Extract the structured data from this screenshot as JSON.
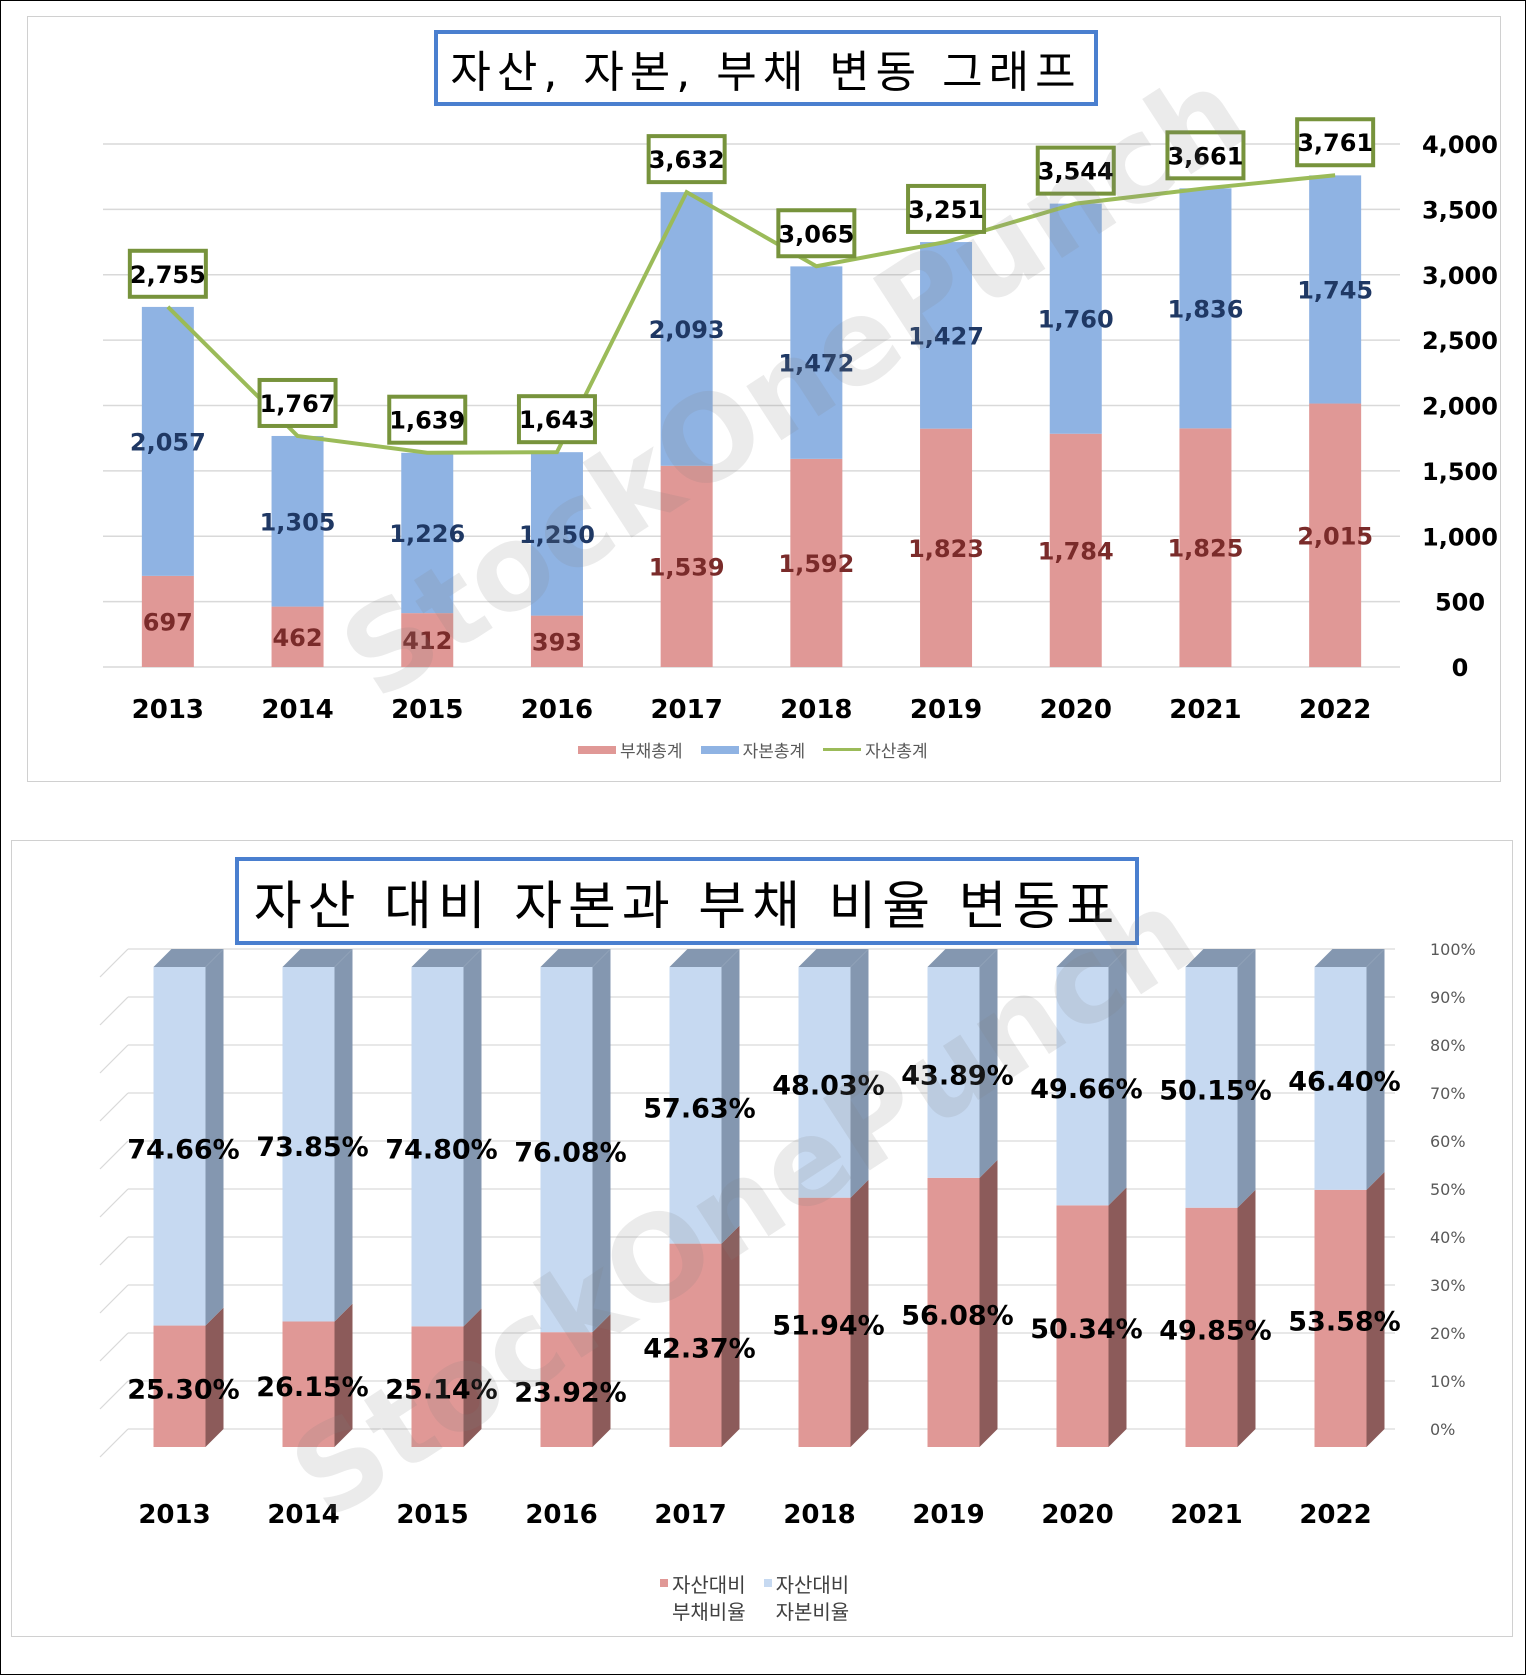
{
  "watermark": "StockOnePunch",
  "chart_data": [
    {
      "type": "bar",
      "stacked": true,
      "title": "자산, 자본, 부채 변동 그래프",
      "categories": [
        "2013",
        "2014",
        "2015",
        "2016",
        "2017",
        "2018",
        "2019",
        "2020",
        "2021",
        "2022"
      ],
      "series": [
        {
          "name": "부채총계",
          "kind": "bar",
          "color": "#e09896",
          "label_color": "#7a2b2a",
          "values": [
            697,
            462,
            412,
            393,
            1539,
            1592,
            1823,
            1784,
            1825,
            2015
          ]
        },
        {
          "name": "자본총계",
          "kind": "bar",
          "color": "#8fb3e3",
          "label_color": "#1f3864",
          "values": [
            2057,
            1305,
            1226,
            1250,
            2093,
            1472,
            1427,
            1760,
            1836,
            1745
          ]
        },
        {
          "name": "자산총계",
          "kind": "line",
          "color": "#9bbb59",
          "values": [
            2755,
            1767,
            1639,
            1643,
            3632,
            3065,
            3251,
            3544,
            3661,
            3761
          ]
        }
      ],
      "value_labels": {
        "debt": [
          "697",
          "462",
          "412",
          "393",
          "1,539",
          "1,592",
          "1,823",
          "1,784",
          "1,825",
          "2,015"
        ],
        "equity": [
          "2,057",
          "1,305",
          "1,226",
          "1,250",
          "2,093",
          "1,472",
          "1,427",
          "1,760",
          "1,836",
          "1,745"
        ],
        "assets": [
          "2,755",
          "1,767",
          "1,639",
          "1,643",
          "3,632",
          "3,065",
          "3,251",
          "3,544",
          "3,661",
          "3,761"
        ]
      },
      "y_axis": {
        "position": "right",
        "ylim": [
          0,
          4000
        ],
        "ticks": [
          "0",
          "500",
          "1,000",
          "1,500",
          "2,000",
          "2,500",
          "3,000",
          "3,500",
          "4,000"
        ]
      },
      "grid": true,
      "legend": "bottom"
    },
    {
      "type": "bar",
      "stacked": true,
      "percent": true,
      "title": "자산 대비 자본과 부채 비율 변동표",
      "categories": [
        "2013",
        "2014",
        "2015",
        "2016",
        "2017",
        "2018",
        "2019",
        "2020",
        "2021",
        "2022"
      ],
      "series": [
        {
          "name": "자산대비 부채비율",
          "color": "#e09896",
          "values": [
            25.3,
            26.15,
            25.14,
            23.92,
            42.37,
            51.94,
            56.08,
            50.34,
            49.85,
            53.58
          ]
        },
        {
          "name": "자산대비 자본비율",
          "color": "#c6d9f1",
          "values": [
            74.66,
            73.85,
            74.8,
            76.08,
            57.63,
            48.03,
            43.89,
            49.66,
            50.15,
            46.4
          ]
        }
      ],
      "value_labels": {
        "debt": [
          "25.30%",
          "26.15%",
          "25.14%",
          "23.92%",
          "42.37%",
          "51.94%",
          "56.08%",
          "50.34%",
          "49.85%",
          "53.58%"
        ],
        "equity": [
          "74.66%",
          "73.85%",
          "74.80%",
          "76.08%",
          "57.63%",
          "48.03%",
          "43.89%",
          "49.66%",
          "50.15%",
          "46.40%"
        ]
      },
      "legend_labels": [
        [
          "자산대비",
          "부채비율"
        ],
        [
          "자산대비",
          "자본비율"
        ]
      ],
      "y_axis": {
        "position": "right",
        "ylim": [
          0,
          100
        ],
        "ticks": [
          "0%",
          "10%",
          "20%",
          "30%",
          "40%",
          "50%",
          "60%",
          "70%",
          "80%",
          "90%",
          "100%"
        ]
      },
      "grid": true,
      "legend": "bottom"
    }
  ]
}
